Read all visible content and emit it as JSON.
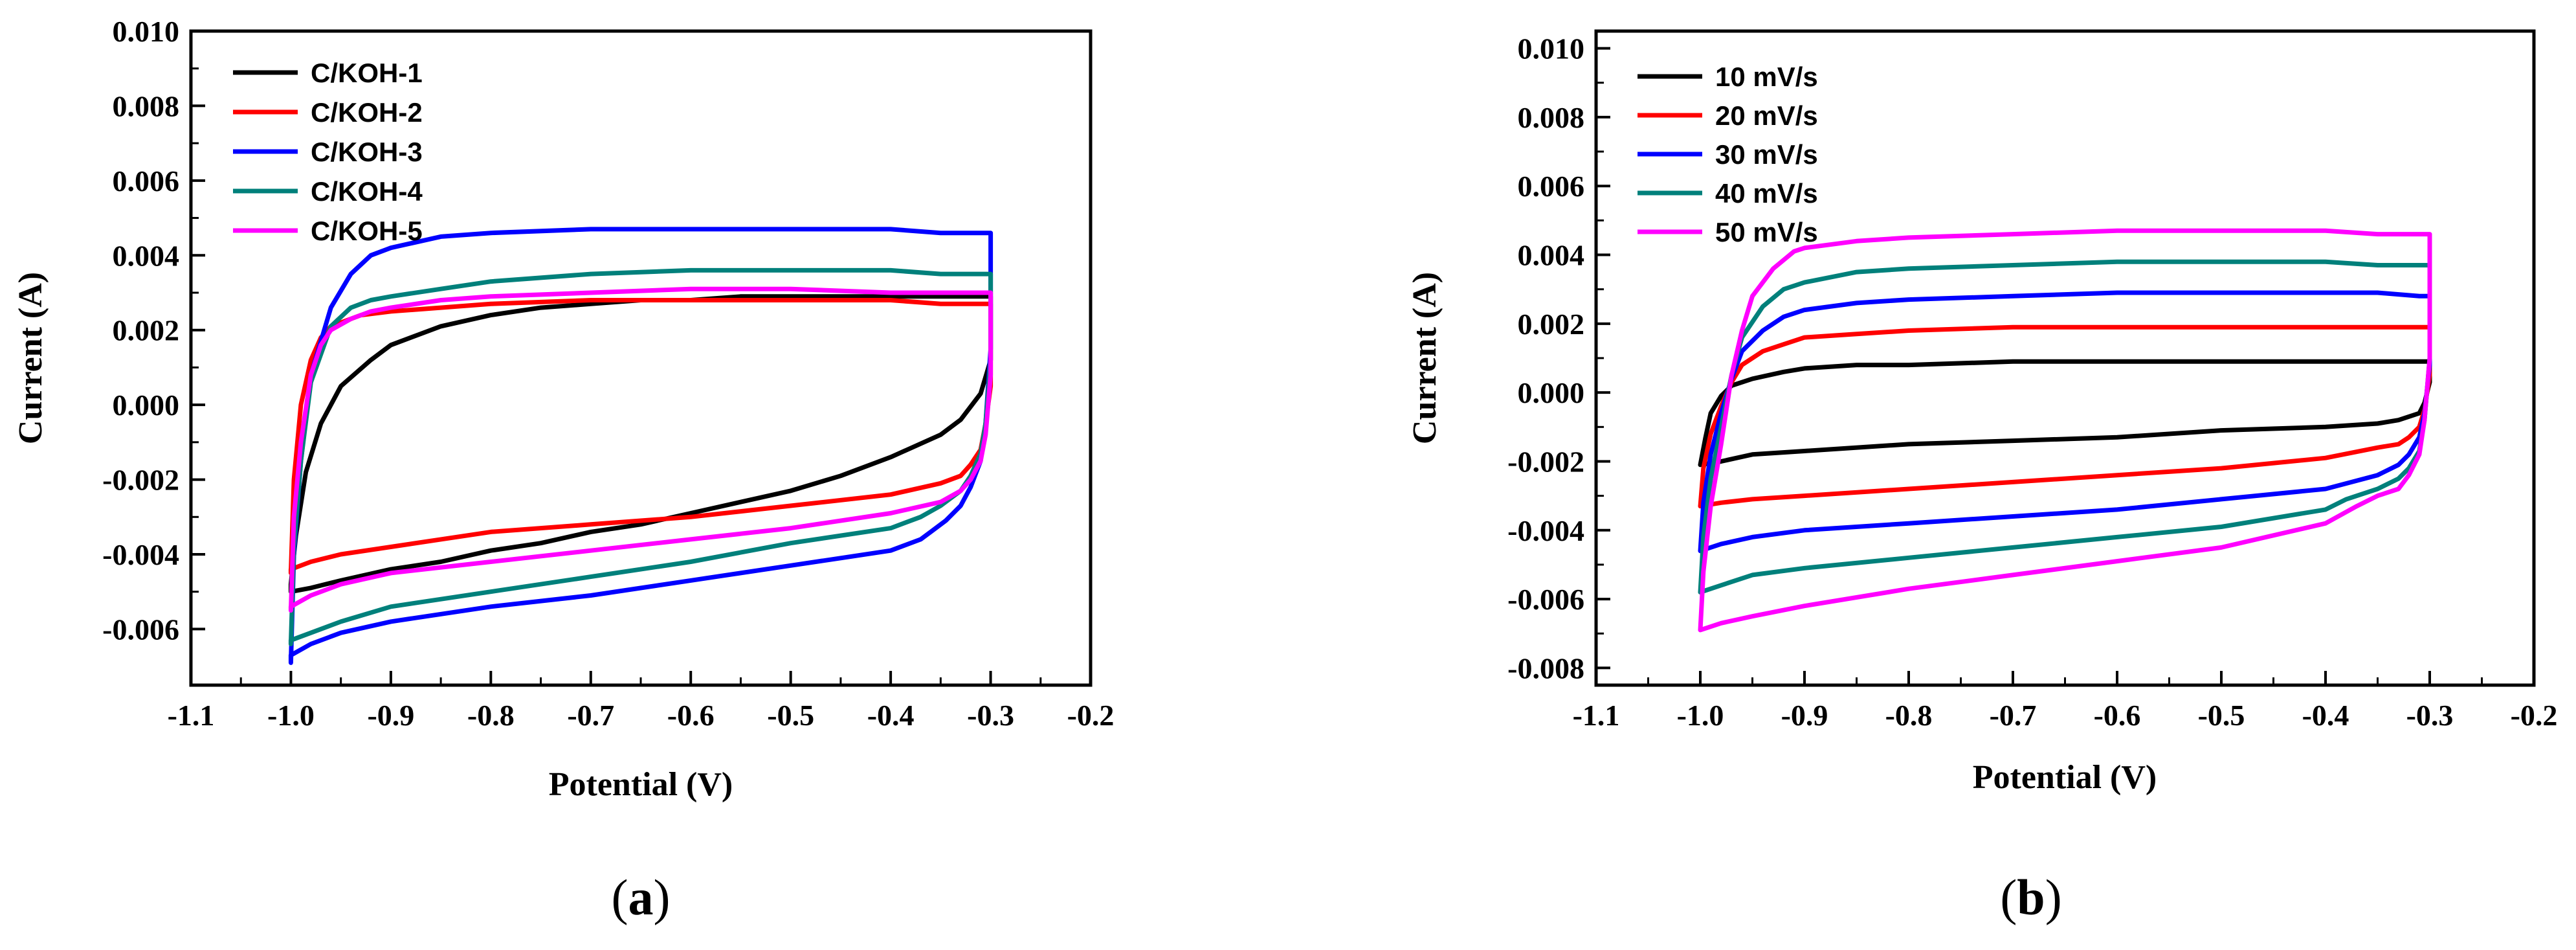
{
  "figure": {
    "panels": [
      {
        "caption_open": "(",
        "caption_letter": "a",
        "caption_close": ")"
      },
      {
        "caption_open": "(",
        "caption_letter": "b",
        "caption_close": ")"
      }
    ]
  },
  "chart_data": [
    {
      "type": "line",
      "title": "",
      "xlabel": "Potential (V)",
      "ylabel": "Current (A)",
      "xlim": [
        -1.1,
        -0.2
      ],
      "ylim": [
        -0.0075,
        0.01
      ],
      "xticks": [
        -1.1,
        -1.0,
        -0.9,
        -0.8,
        -0.7,
        -0.6,
        -0.5,
        -0.4,
        -0.3,
        -0.2
      ],
      "xtick_labels": [
        "-1.1",
        "-1.0",
        "-0.9",
        "-0.8",
        "-0.7",
        "-0.6",
        "-0.5",
        "-0.4",
        "-0.3",
        "-0.2"
      ],
      "yticks": [
        -0.006,
        -0.004,
        -0.002,
        0.0,
        0.002,
        0.004,
        0.006,
        0.008,
        0.01
      ],
      "ytick_labels": [
        "-0.006",
        "-0.004",
        "-0.002",
        "0.000",
        "0.002",
        "0.004",
        "0.006",
        "0.008",
        "0.010"
      ],
      "legend_position": "top-left",
      "grid": false,
      "series": [
        {
          "name": "C/KOH-1",
          "color": "#000000",
          "x": [
            -1.0,
            -0.995,
            -0.985,
            -0.97,
            -0.95,
            -0.92,
            -0.9,
            -0.85,
            -0.8,
            -0.75,
            -0.7,
            -0.65,
            -0.6,
            -0.55,
            -0.5,
            -0.45,
            -0.4,
            -0.35,
            -0.31,
            -0.3,
            -0.3,
            -0.31,
            -0.33,
            -0.35,
            -0.4,
            -0.45,
            -0.5,
            -0.55,
            -0.6,
            -0.65,
            -0.7,
            -0.75,
            -0.8,
            -0.85,
            -0.9,
            -0.95,
            -0.98,
            -1.0,
            -1.0
          ],
          "y": [
            -0.0048,
            -0.0035,
            -0.0018,
            -0.0005,
            0.0005,
            0.0012,
            0.0016,
            0.0021,
            0.0024,
            0.0026,
            0.0027,
            0.0028,
            0.0028,
            0.0029,
            0.0029,
            0.0029,
            0.0029,
            0.0029,
            0.0029,
            0.0029,
            0.0012,
            0.0003,
            -0.0004,
            -0.0008,
            -0.0014,
            -0.0019,
            -0.0023,
            -0.0026,
            -0.0029,
            -0.0032,
            -0.0034,
            -0.0037,
            -0.0039,
            -0.0042,
            -0.0044,
            -0.0047,
            -0.0049,
            -0.005,
            -0.0048
          ]
        },
        {
          "name": "C/KOH-2",
          "color": "#ff0000",
          "x": [
            -1.0,
            -0.997,
            -0.99,
            -0.98,
            -0.97,
            -0.96,
            -0.95,
            -0.93,
            -0.9,
            -0.85,
            -0.8,
            -0.7,
            -0.6,
            -0.5,
            -0.4,
            -0.35,
            -0.31,
            -0.3,
            -0.3,
            -0.305,
            -0.31,
            -0.32,
            -0.33,
            -0.35,
            -0.4,
            -0.5,
            -0.6,
            -0.7,
            -0.8,
            -0.85,
            -0.9,
            -0.95,
            -0.98,
            -1.0,
            -1.0
          ],
          "y": [
            -0.0045,
            -0.002,
            0.0,
            0.0012,
            0.0018,
            0.0021,
            0.0022,
            0.0024,
            0.0025,
            0.0026,
            0.0027,
            0.0028,
            0.0028,
            0.0028,
            0.0028,
            0.0027,
            0.0027,
            0.0027,
            0.0005,
            -0.0005,
            -0.0012,
            -0.0016,
            -0.0019,
            -0.0021,
            -0.0024,
            -0.0027,
            -0.003,
            -0.0032,
            -0.0034,
            -0.0036,
            -0.0038,
            -0.004,
            -0.0042,
            -0.0044,
            -0.0045
          ]
        },
        {
          "name": "C/KOH-3",
          "color": "#0000ff",
          "x": [
            -1.0,
            -0.997,
            -0.99,
            -0.98,
            -0.96,
            -0.94,
            -0.92,
            -0.9,
            -0.85,
            -0.8,
            -0.7,
            -0.6,
            -0.5,
            -0.4,
            -0.35,
            -0.31,
            -0.3,
            -0.3,
            -0.305,
            -0.31,
            -0.32,
            -0.33,
            -0.345,
            -0.36,
            -0.37,
            -0.4,
            -0.45,
            -0.5,
            -0.6,
            -0.7,
            -0.8,
            -0.9,
            -0.95,
            -0.98,
            -1.0,
            -1.0
          ],
          "y": [
            -0.0069,
            -0.004,
            -0.0015,
            0.0008,
            0.0026,
            0.0035,
            0.004,
            0.0042,
            0.0045,
            0.0046,
            0.0047,
            0.0047,
            0.0047,
            0.0047,
            0.0046,
            0.0046,
            0.0046,
            0.0015,
            -0.0005,
            -0.0015,
            -0.0022,
            -0.0027,
            -0.0031,
            -0.0034,
            -0.0036,
            -0.0039,
            -0.0041,
            -0.0043,
            -0.0047,
            -0.0051,
            -0.0054,
            -0.0058,
            -0.0061,
            -0.0064,
            -0.0067,
            -0.0069
          ]
        },
        {
          "name": "C/KOH-4",
          "color": "#00807b",
          "x": [
            -1.0,
            -0.997,
            -0.99,
            -0.98,
            -0.96,
            -0.94,
            -0.92,
            -0.9,
            -0.85,
            -0.8,
            -0.7,
            -0.6,
            -0.55,
            -0.5,
            -0.4,
            -0.35,
            -0.3,
            -0.3,
            -0.305,
            -0.31,
            -0.32,
            -0.33,
            -0.35,
            -0.37,
            -0.4,
            -0.5,
            -0.6,
            -0.7,
            -0.8,
            -0.9,
            -0.95,
            -0.98,
            -1.0,
            -1.0
          ],
          "y": [
            -0.0064,
            -0.0038,
            -0.0015,
            0.0006,
            0.0021,
            0.0026,
            0.0028,
            0.0029,
            0.0031,
            0.0033,
            0.0035,
            0.0036,
            0.0036,
            0.0036,
            0.0036,
            0.0035,
            0.0035,
            0.0012,
            -0.0005,
            -0.0013,
            -0.0019,
            -0.0023,
            -0.0027,
            -0.003,
            -0.0033,
            -0.0037,
            -0.0042,
            -0.0046,
            -0.005,
            -0.0054,
            -0.0058,
            -0.0061,
            -0.0063,
            -0.0064
          ]
        },
        {
          "name": "C/KOH-5",
          "color": "#ff00ff",
          "x": [
            -1.0,
            -0.997,
            -0.99,
            -0.98,
            -0.97,
            -0.96,
            -0.94,
            -0.92,
            -0.9,
            -0.85,
            -0.8,
            -0.7,
            -0.6,
            -0.5,
            -0.4,
            -0.35,
            -0.31,
            -0.3,
            -0.3,
            -0.305,
            -0.31,
            -0.32,
            -0.33,
            -0.35,
            -0.4,
            -0.5,
            -0.6,
            -0.7,
            -0.8,
            -0.9,
            -0.95,
            -0.98,
            -1.0,
            -1.0
          ],
          "y": [
            -0.0055,
            -0.003,
            -0.001,
            0.0008,
            0.0016,
            0.002,
            0.0023,
            0.0025,
            0.0026,
            0.0028,
            0.0029,
            0.003,
            0.0031,
            0.0031,
            0.003,
            0.003,
            0.003,
            0.003,
            0.0008,
            -0.0008,
            -0.0015,
            -0.002,
            -0.0023,
            -0.0026,
            -0.0029,
            -0.0033,
            -0.0036,
            -0.0039,
            -0.0042,
            -0.0045,
            -0.0048,
            -0.0051,
            -0.0054,
            -0.0055
          ]
        }
      ]
    },
    {
      "type": "line",
      "title": "",
      "xlabel": "Potential (V)",
      "ylabel": "Current (A)",
      "xlim": [
        -1.1,
        -0.2
      ],
      "ylim": [
        -0.0085,
        0.0105
      ],
      "xticks": [
        -1.1,
        -1.0,
        -0.9,
        -0.8,
        -0.7,
        -0.6,
        -0.5,
        -0.4,
        -0.3,
        -0.2
      ],
      "xtick_labels": [
        "-1.1",
        "-1.0",
        "-0.9",
        "-0.8",
        "-0.7",
        "-0.6",
        "-0.5",
        "-0.4",
        "-0.3",
        "-0.2"
      ],
      "yticks": [
        -0.008,
        -0.006,
        -0.004,
        -0.002,
        0.0,
        0.002,
        0.004,
        0.006,
        0.008,
        0.01
      ],
      "ytick_labels": [
        "-0.008",
        "-0.006",
        "-0.004",
        "-0.002",
        "0.000",
        "0.002",
        "0.004",
        "0.006",
        "0.008",
        "0.010"
      ],
      "legend_position": "top-left",
      "grid": false,
      "series": [
        {
          "name": "10 mV/s",
          "color": "#000000",
          "x": [
            -1.0,
            -0.995,
            -0.99,
            -0.98,
            -0.97,
            -0.95,
            -0.92,
            -0.9,
            -0.85,
            -0.8,
            -0.7,
            -0.6,
            -0.5,
            -0.4,
            -0.35,
            -0.31,
            -0.3,
            -0.3,
            -0.305,
            -0.31,
            -0.33,
            -0.35,
            -0.4,
            -0.5,
            -0.6,
            -0.7,
            -0.8,
            -0.9,
            -0.95,
            -0.98,
            -1.0,
            -1.0
          ],
          "y": [
            -0.0021,
            -0.0013,
            -0.0006,
            -0.0001,
            0.0002,
            0.0004,
            0.0006,
            0.0007,
            0.0008,
            0.0008,
            0.0009,
            0.0009,
            0.0009,
            0.0009,
            0.0009,
            0.0009,
            0.0009,
            0.0003,
            -0.0003,
            -0.0006,
            -0.0008,
            -0.0009,
            -0.001,
            -0.0011,
            -0.0013,
            -0.0014,
            -0.0015,
            -0.0017,
            -0.0018,
            -0.002,
            -0.0021,
            -0.0021
          ]
        },
        {
          "name": "20 mV/s",
          "color": "#ff0000",
          "x": [
            -1.0,
            -0.997,
            -0.99,
            -0.98,
            -0.97,
            -0.96,
            -0.94,
            -0.92,
            -0.9,
            -0.85,
            -0.8,
            -0.7,
            -0.6,
            -0.5,
            -0.4,
            -0.35,
            -0.31,
            -0.3,
            -0.3,
            -0.305,
            -0.31,
            -0.32,
            -0.33,
            -0.35,
            -0.4,
            -0.5,
            -0.6,
            -0.7,
            -0.8,
            -0.9,
            -0.95,
            -0.98,
            -1.0,
            -1.0
          ],
          "y": [
            -0.0033,
            -0.0022,
            -0.0012,
            -0.0004,
            0.0003,
            0.0008,
            0.0012,
            0.0014,
            0.0016,
            0.0017,
            0.0018,
            0.0019,
            0.0019,
            0.0019,
            0.0019,
            0.0019,
            0.0019,
            0.0019,
            0.0005,
            -0.0005,
            -0.001,
            -0.0013,
            -0.0015,
            -0.0016,
            -0.0019,
            -0.0022,
            -0.0024,
            -0.0026,
            -0.0028,
            -0.003,
            -0.0031,
            -0.0032,
            -0.0033,
            -0.0033
          ]
        },
        {
          "name": "30 mV/s",
          "color": "#0000ff",
          "x": [
            -1.0,
            -0.997,
            -0.99,
            -0.98,
            -0.97,
            -0.96,
            -0.94,
            -0.92,
            -0.9,
            -0.85,
            -0.8,
            -0.7,
            -0.6,
            -0.5,
            -0.4,
            -0.35,
            -0.31,
            -0.3,
            -0.3,
            -0.305,
            -0.31,
            -0.32,
            -0.33,
            -0.35,
            -0.4,
            -0.5,
            -0.6,
            -0.7,
            -0.8,
            -0.9,
            -0.95,
            -0.98,
            -1.0,
            -1.0
          ],
          "y": [
            -0.0046,
            -0.0032,
            -0.0018,
            -0.0006,
            0.0004,
            0.0012,
            0.0018,
            0.0022,
            0.0024,
            0.0026,
            0.0027,
            0.0028,
            0.0029,
            0.0029,
            0.0029,
            0.0029,
            0.0028,
            0.0028,
            0.0008,
            -0.0006,
            -0.0013,
            -0.0018,
            -0.0021,
            -0.0024,
            -0.0028,
            -0.0031,
            -0.0034,
            -0.0036,
            -0.0038,
            -0.004,
            -0.0042,
            -0.0044,
            -0.0046,
            -0.0046
          ]
        },
        {
          "name": "40 mV/s",
          "color": "#00807b",
          "x": [
            -1.0,
            -0.997,
            -0.99,
            -0.98,
            -0.97,
            -0.96,
            -0.94,
            -0.92,
            -0.9,
            -0.85,
            -0.8,
            -0.7,
            -0.6,
            -0.5,
            -0.4,
            -0.35,
            -0.31,
            -0.3,
            -0.3,
            -0.305,
            -0.31,
            -0.32,
            -0.33,
            -0.35,
            -0.38,
            -0.4,
            -0.5,
            -0.6,
            -0.7,
            -0.8,
            -0.9,
            -0.95,
            -0.98,
            -1.0,
            -1.0
          ],
          "y": [
            -0.0058,
            -0.0042,
            -0.0025,
            -0.001,
            0.0005,
            0.0016,
            0.0025,
            0.003,
            0.0032,
            0.0035,
            0.0036,
            0.0037,
            0.0038,
            0.0038,
            0.0038,
            0.0037,
            0.0037,
            0.0037,
            0.001,
            -0.0008,
            -0.0017,
            -0.0022,
            -0.0025,
            -0.0028,
            -0.0031,
            -0.0034,
            -0.0039,
            -0.0042,
            -0.0045,
            -0.0048,
            -0.0051,
            -0.0053,
            -0.0056,
            -0.0058,
            -0.0058
          ]
        },
        {
          "name": "50 mV/s",
          "color": "#ff00ff",
          "x": [
            -1.0,
            -0.997,
            -0.99,
            -0.98,
            -0.97,
            -0.96,
            -0.95,
            -0.93,
            -0.91,
            -0.9,
            -0.85,
            -0.8,
            -0.7,
            -0.6,
            -0.5,
            -0.4,
            -0.35,
            -0.31,
            -0.3,
            -0.3,
            -0.305,
            -0.31,
            -0.32,
            -0.33,
            -0.35,
            -0.37,
            -0.4,
            -0.5,
            -0.6,
            -0.7,
            -0.8,
            -0.9,
            -0.95,
            -0.98,
            -1.0,
            -1.0
          ],
          "y": [
            -0.0069,
            -0.0052,
            -0.0033,
            -0.0015,
            0.0005,
            0.0018,
            0.0028,
            0.0036,
            0.0041,
            0.0042,
            0.0044,
            0.0045,
            0.0046,
            0.0047,
            0.0047,
            0.0047,
            0.0046,
            0.0046,
            0.0046,
            0.001,
            -0.0008,
            -0.0018,
            -0.0024,
            -0.0028,
            -0.003,
            -0.0033,
            -0.0038,
            -0.0045,
            -0.0049,
            -0.0053,
            -0.0057,
            -0.0062,
            -0.0065,
            -0.0067,
            -0.0069,
            -0.0069
          ]
        }
      ]
    }
  ]
}
